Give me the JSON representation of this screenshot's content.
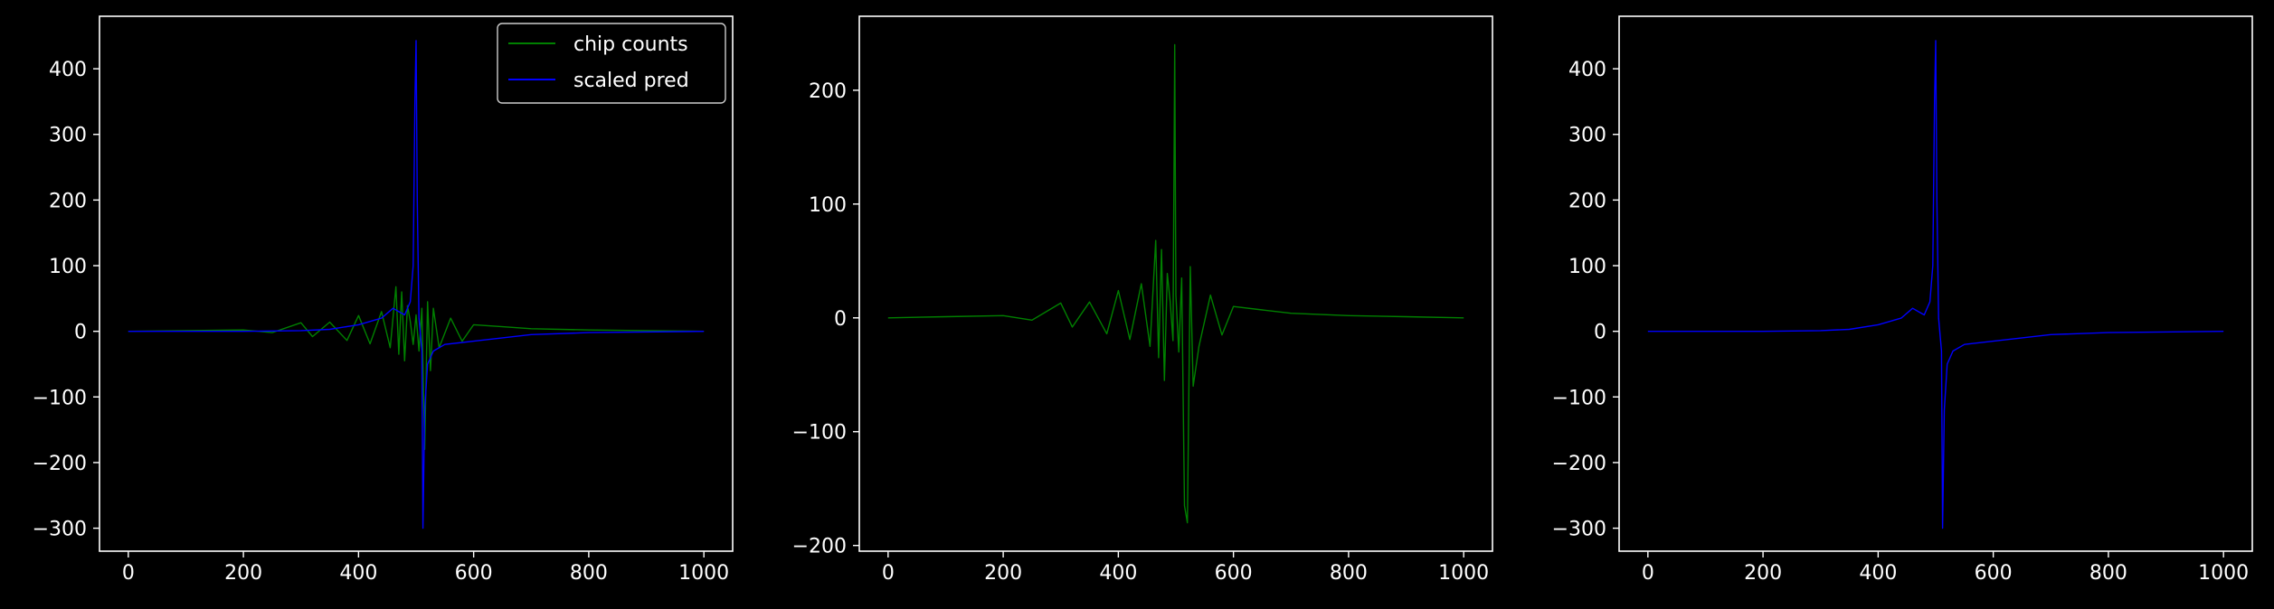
{
  "chart_data": [
    {
      "type": "line",
      "title": "",
      "xlabel": "",
      "ylabel": "",
      "xlim": [
        -50,
        1050
      ],
      "ylim": [
        -335,
        480
      ],
      "x_ticks": [
        0,
        200,
        400,
        600,
        800,
        1000
      ],
      "y_ticks": [
        -300,
        -200,
        -100,
        0,
        100,
        200,
        300,
        400
      ],
      "legend": {
        "placement": "top-right",
        "entries": [
          "chip counts",
          "scaled pred"
        ]
      },
      "series": [
        {
          "name": "chip counts",
          "color": "#008000",
          "x": [
            0,
            100,
            200,
            250,
            300,
            320,
            350,
            380,
            400,
            420,
            440,
            455,
            465,
            470,
            475,
            480,
            485,
            490,
            495,
            500,
            505,
            510,
            515,
            520,
            525,
            530,
            540,
            560,
            580,
            600,
            650,
            700,
            800,
            900,
            1000
          ],
          "values": [
            0,
            1,
            2,
            -2,
            13,
            -8,
            14,
            -14,
            24,
            -19,
            30,
            -25,
            68,
            -35,
            60,
            -45,
            39,
            15,
            -20,
            25,
            -30,
            35,
            -180,
            45,
            -60,
            35,
            -25,
            20,
            -15,
            10,
            7,
            4,
            2,
            1,
            0
          ]
        },
        {
          "name": "scaled pred",
          "color": "#0000ff",
          "x": [
            0,
            100,
            200,
            300,
            350,
            400,
            440,
            460,
            470,
            480,
            490,
            495,
            498,
            500,
            502,
            505,
            510,
            512,
            515,
            520,
            530,
            550,
            600,
            650,
            700,
            800,
            1000
          ],
          "values": [
            0,
            0,
            0,
            1,
            3,
            10,
            20,
            35,
            30,
            25,
            45,
            100,
            350,
            443,
            200,
            20,
            -30,
            -300,
            -120,
            -50,
            -30,
            -20,
            -15,
            -10,
            -5,
            -2,
            0
          ]
        }
      ]
    },
    {
      "type": "line",
      "title": "",
      "xlabel": "",
      "ylabel": "",
      "xlim": [
        -50,
        1050
      ],
      "ylim": [
        -205,
        265
      ],
      "x_ticks": [
        0,
        200,
        400,
        600,
        800,
        1000
      ],
      "y_ticks": [
        -200,
        -100,
        0,
        100,
        200
      ],
      "series": [
        {
          "color": "#008000",
          "x": [
            0,
            100,
            200,
            250,
            300,
            320,
            350,
            380,
            400,
            420,
            440,
            455,
            465,
            470,
            475,
            480,
            485,
            490,
            495,
            498,
            500,
            505,
            510,
            515,
            520,
            525,
            530,
            540,
            560,
            580,
            600,
            650,
            700,
            800,
            900,
            1000
          ],
          "values": [
            0,
            1,
            2,
            -2,
            13,
            -8,
            14,
            -14,
            24,
            -19,
            30,
            -25,
            68,
            -35,
            60,
            -55,
            39,
            15,
            -20,
            240,
            20,
            -30,
            35,
            -165,
            -180,
            45,
            -60,
            -25,
            20,
            -15,
            10,
            7,
            4,
            2,
            1,
            0
          ]
        }
      ]
    },
    {
      "type": "line",
      "title": "",
      "xlabel": "",
      "ylabel": "",
      "xlim": [
        -50,
        1050
      ],
      "ylim": [
        -335,
        480
      ],
      "x_ticks": [
        0,
        200,
        400,
        600,
        800,
        1000
      ],
      "y_ticks": [
        -300,
        -200,
        -100,
        0,
        100,
        200,
        300,
        400
      ],
      "series": [
        {
          "color": "#0000ff",
          "x": [
            0,
            100,
            200,
            300,
            350,
            400,
            440,
            460,
            470,
            480,
            490,
            495,
            498,
            500,
            502,
            505,
            510,
            512,
            515,
            520,
            530,
            550,
            600,
            650,
            700,
            800,
            1000
          ],
          "values": [
            0,
            0,
            0,
            1,
            3,
            10,
            20,
            35,
            30,
            25,
            45,
            100,
            350,
            443,
            200,
            20,
            -30,
            -300,
            -120,
            -50,
            -30,
            -20,
            -15,
            -10,
            -5,
            -2,
            0
          ]
        }
      ]
    }
  ]
}
